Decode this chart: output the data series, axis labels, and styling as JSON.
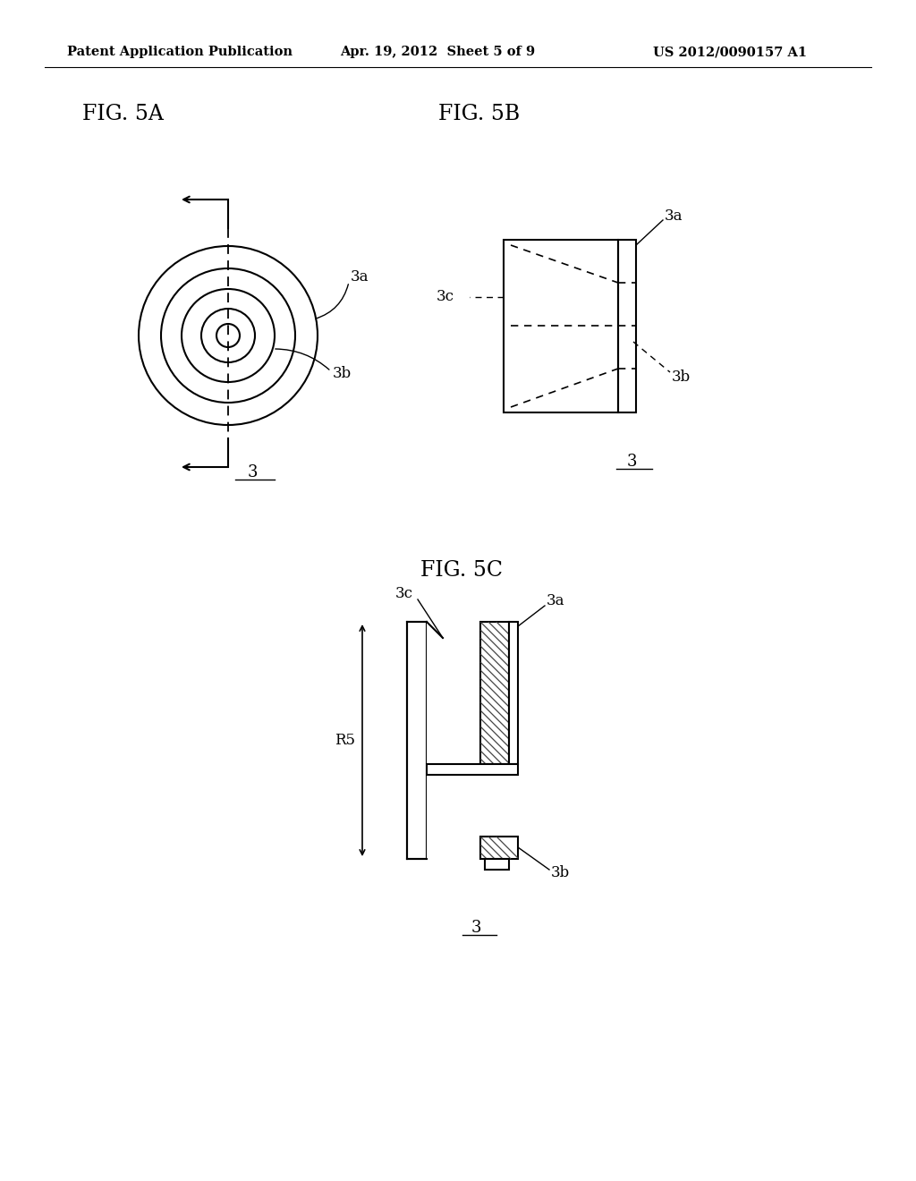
{
  "header_left": "Patent Application Publication",
  "header_center": "Apr. 19, 2012  Sheet 5 of 9",
  "header_right": "US 2012/0090157 A1",
  "fig5a_label": "FIG. 5A",
  "fig5b_label": "FIG. 5B",
  "fig5c_label": "FIG. 5C",
  "ref_3": "3",
  "ref_3a": "3a",
  "ref_3b": "3b",
  "ref_3c": "3c",
  "ref_R5": "R5",
  "bg_color": "#ffffff",
  "line_color": "#000000"
}
